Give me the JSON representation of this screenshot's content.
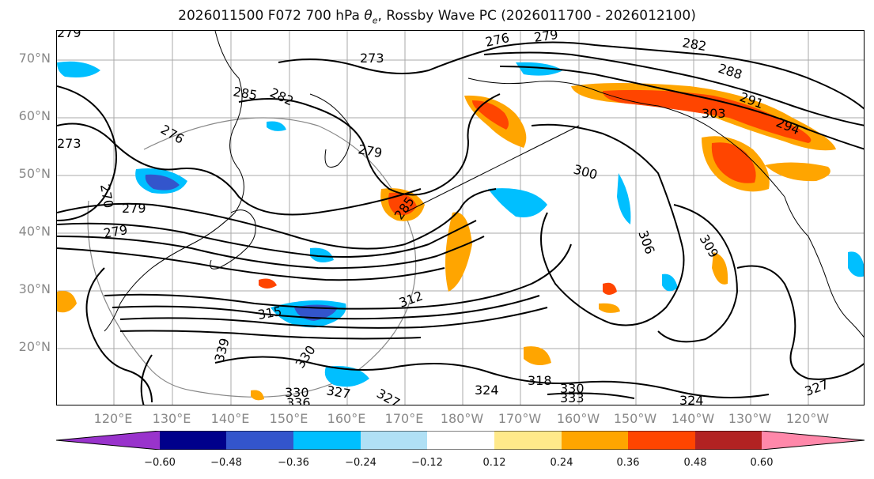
{
  "title": {
    "prefix": "2026011500 F072 700 hPa ",
    "theta": "θ",
    "theta_sub": "e",
    "suffix": ", Rossby Wave PC (2026011700 - 2026012100)"
  },
  "lat_labels": [
    "70°N",
    "60°N",
    "50°N",
    "40°N",
    "30°N",
    "20°N"
  ],
  "lon_labels": [
    "120°E",
    "130°E",
    "140°E",
    "150°E",
    "160°E",
    "170°E",
    "180°W",
    "170°W",
    "160°W",
    "150°W",
    "140°W",
    "130°W",
    "120°W"
  ],
  "contour_labels": [
    "276",
    "279",
    "282",
    "288",
    "291",
    "294",
    "303",
    "273",
    "285",
    "282",
    "276",
    "279",
    "273",
    "279",
    "270",
    "279",
    "285",
    "300",
    "306",
    "309",
    "312",
    "315",
    "339",
    "330",
    "327",
    "330",
    "336",
    "318",
    "324",
    "327",
    "324",
    "330",
    "333",
    "327",
    "279"
  ],
  "colorbar": {
    "colors": [
      "#9933cc",
      "#00008b",
      "#3355cc",
      "#00bfff",
      "#b0e0f5",
      "#ffffff",
      "#ffe98a",
      "#ffa500",
      "#ff4500",
      "#b22222",
      "#ff88aa"
    ],
    "tick_labels": [
      "−0.60",
      "−0.48",
      "−0.36",
      "−0.24",
      "−0.12",
      "0.12",
      "0.24",
      "0.36",
      "0.48",
      "0.60"
    ]
  },
  "colors": {
    "contour": "#000000",
    "grid": "#aaaaaa",
    "coast": "#000000",
    "axis_label": "#888888"
  }
}
